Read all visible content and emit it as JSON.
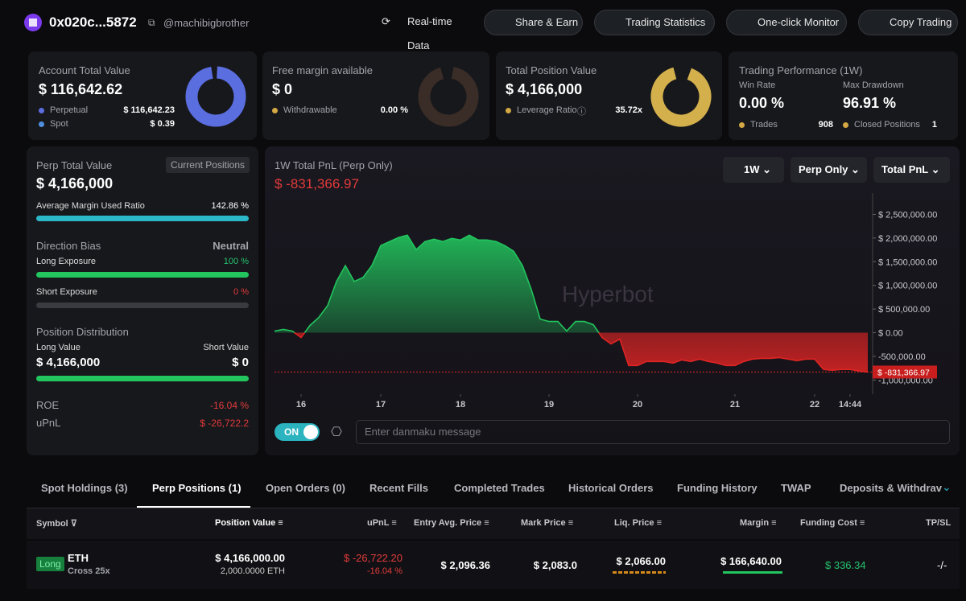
{
  "header": {
    "address": "0x020c...5872",
    "handle": "@machibigbrother",
    "buttons": [
      "Real-time Data",
      "Share & Earn",
      "Trading Statistics",
      "One-click Monitor",
      "Copy Trading"
    ]
  },
  "cards": {
    "account": {
      "title": "Account Total Value",
      "value": "$ 116,642.62",
      "rows": [
        {
          "label": "Perpetual",
          "value": "$ 116,642.23"
        },
        {
          "label": "Spot",
          "value": "$ 0.39"
        }
      ]
    },
    "margin": {
      "title": "Free margin available",
      "value": "$ 0",
      "rows": [
        {
          "label": "Withdrawable",
          "value": "0.00 %"
        }
      ]
    },
    "position": {
      "title": "Total Position Value",
      "value": "$ 4,166,000",
      "rows": [
        {
          "label": "Leverage Ratio",
          "value": "35.72x"
        }
      ]
    },
    "performance": {
      "title": "Trading Performance (1W)",
      "win_rate_label": "Win Rate",
      "win_rate": "0.00 %",
      "drawdown_label": "Max Drawdown",
      "drawdown": "96.91 %",
      "trades_label": "Trades",
      "trades": "908",
      "closed_label": "Closed Positions",
      "closed": "1"
    }
  },
  "perp": {
    "title": "Perp Total Value",
    "badge": "Current Positions",
    "value": "$ 4,166,000",
    "margin_ratio_label": "Average Margin Used Ratio",
    "margin_ratio": "142.86 %",
    "bias_label": "Direction Bias",
    "bias": "Neutral",
    "long_label": "Long Exposure",
    "long": "100 %",
    "short_label": "Short Exposure",
    "short": "0 %",
    "dist_label": "Position Distribution",
    "long_value_label": "Long Value",
    "long_value": "$ 4,166,000",
    "short_value_label": "Short Value",
    "short_value": "$ 0",
    "roe_label": "ROE",
    "roe": "-16.04 %",
    "upnl_label": "uPnL",
    "upnl": "$ -26,722.2"
  },
  "pnl_chart": {
    "type": "area",
    "title": "1W Total PnL (Perp Only)",
    "current": "$ -831,366.97",
    "filters": [
      "1W",
      "Perp Only",
      "Total PnL"
    ],
    "watermark": "Hyperbot",
    "values": [
      34000,
      68000,
      34000,
      -101000,
      152000,
      321000,
      574000,
      1081000,
      1419000,
      1081000,
      1166000,
      1419000,
      1841000,
      1926000,
      2010000,
      2061000,
      1757000,
      1926000,
      1976000,
      1926000,
      1993000,
      1959000,
      2061000,
      1959000,
      1959000,
      1926000,
      1841000,
      1723000,
      1419000,
      912000,
      287000,
      236000,
      236000,
      34000,
      236000,
      236000,
      169000,
      -101000,
      -236000,
      -135000,
      -693000,
      -693000,
      -608000,
      -608000,
      -608000,
      -642000,
      -574000,
      -608000,
      -557000,
      -608000,
      -642000,
      -693000,
      -693000,
      -608000,
      -557000,
      -541000,
      -541000,
      -524000,
      -557000,
      -591000,
      -557000,
      -557000,
      -777000,
      -794000,
      -777000,
      -777000,
      -811000,
      -831366.97
    ],
    "xlim": [
      0,
      67
    ],
    "xticks": [
      {
        "value": 3,
        "label": "16"
      },
      {
        "value": 12,
        "label": "17"
      },
      {
        "value": 21,
        "label": "18"
      },
      {
        "value": 31,
        "label": "19"
      },
      {
        "value": 41,
        "label": "20"
      },
      {
        "value": 52,
        "label": "21"
      },
      {
        "value": 61,
        "label": "22"
      },
      {
        "value": 65,
        "label": "14:44"
      }
    ],
    "ylim": [
      -1300000,
      2950000
    ],
    "yticks": [
      {
        "value": 2500000,
        "label": "$ 2,500,000.00"
      },
      {
        "value": 2000000,
        "label": "$ 2,000,000.00"
      },
      {
        "value": 1500000,
        "label": "$ 1,500,000.00"
      },
      {
        "value": 1000000,
        "label": "$ 1,000,000.00"
      },
      {
        "value": 500000,
        "label": "$ 500,000.00"
      },
      {
        "value": 0,
        "label": "$ 0.00"
      },
      {
        "value": -500000,
        "label": "-500,000.00"
      },
      {
        "value": -1000000,
        "label": "-1,000,000.00"
      }
    ],
    "positive_color": "#22c55e",
    "negative_color": "#e02424"
  },
  "danmaku": {
    "toggle": "ON",
    "placeholder": "Enter danmaku message"
  },
  "tabs": [
    "Spot Holdings (3)",
    "Perp Positions (1)",
    "Open Orders (0)",
    "Recent Fills",
    "Completed Trades",
    "Historical Orders",
    "Funding History",
    "TWAP",
    "Deposits & Withdrav"
  ],
  "table": {
    "columns": [
      "Symbol",
      "Position Value",
      "uPnL",
      "Entry Avg. Price",
      "Mark Price",
      "Liq. Price",
      "Margin",
      "Funding Cost",
      "TP/SL"
    ],
    "rows": [
      {
        "side": "Long",
        "symbol": "ETH",
        "mode": "Cross 25x",
        "position_value": "$ 4,166,000.00",
        "size": "2,000.0000 ETH",
        "upnl": "$ -26,722.20",
        "upnl_pct": "-16.04 %",
        "entry": "$ 2,096.36",
        "mark": "$ 2,083.0",
        "liq": "$ 2,066.00",
        "margin": "$ 166,640.00",
        "funding": "$ 336.34",
        "tpsl": "-/-"
      }
    ]
  }
}
